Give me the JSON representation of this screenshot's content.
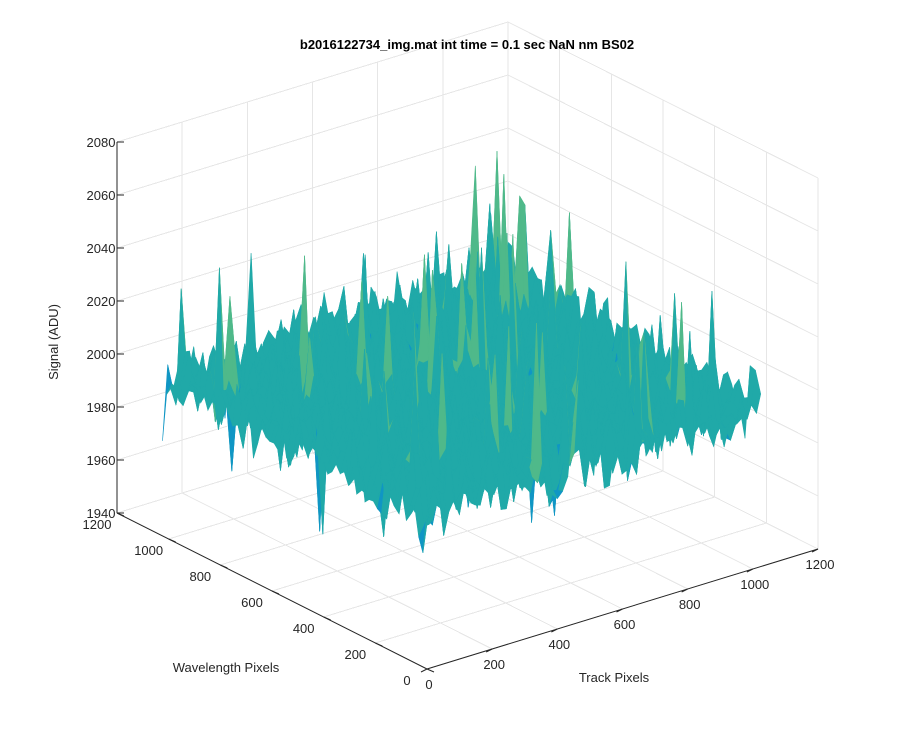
{
  "chart_data": {
    "type": "surface",
    "title": "b2016122734_img.mat int time = 0.1 sec  NaN nm BS02",
    "xlabel": "Track Pixels",
    "ylabel": "Wavelength Pixels",
    "zlabel": "Signal (ADU)",
    "xlim": [
      0,
      1200
    ],
    "ylim": [
      0,
      1200
    ],
    "zlim": [
      1940,
      2080
    ],
    "x_ticks": [
      "0",
      "200",
      "400",
      "600",
      "800",
      "1000",
      "1200"
    ],
    "y_ticks": [
      "0",
      "200",
      "400",
      "600",
      "800",
      "1000",
      "1200"
    ],
    "z_ticks": [
      "1940",
      "1960",
      "1980",
      "2000",
      "2020",
      "2040",
      "2060",
      "2080"
    ],
    "x_extent": [
      0,
      1024
    ],
    "y_extent": [
      0,
      1024
    ],
    "signal_mean": 2000,
    "signal_range": [
      1945,
      2075
    ],
    "grid": true,
    "colormap": [
      "#1f6fd1",
      "#1096c4",
      "#20a9a8",
      "#4fb98a",
      "#97c36a",
      "#d6c85a"
    ]
  },
  "colors": {
    "axis": "#262626",
    "grid": "#e6e6e6",
    "background": "#ffffff"
  }
}
